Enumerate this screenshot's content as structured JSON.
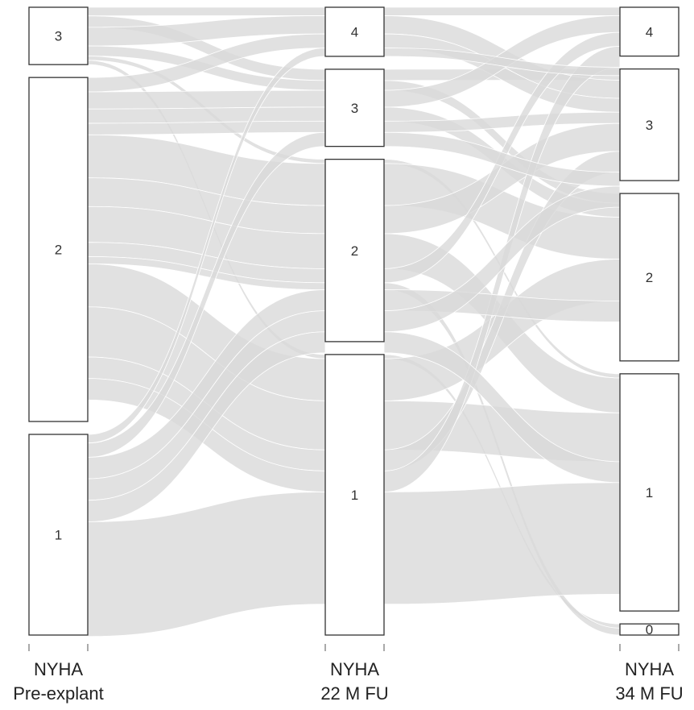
{
  "chart_data": {
    "type": "alluvial",
    "axes": [
      {
        "title_line1": "NYHA",
        "title_line2": "Pre-explant",
        "categories": [
          "3",
          "2",
          "1"
        ],
        "sizes": [
          4,
          24,
          14
        ]
      },
      {
        "title_line1": "NYHA",
        "title_line2": "22 M FU",
        "categories": [
          "4",
          "3",
          "2",
          "1"
        ],
        "sizes": [
          3.5,
          5.5,
          13,
          20
        ]
      },
      {
        "title_line1": "NYHA",
        "title_line2": "34 M FU",
        "categories": [
          "4",
          "3",
          "2",
          "1",
          "0"
        ],
        "sizes": [
          3.5,
          8,
          12,
          17,
          0.8
        ]
      }
    ],
    "flows": [
      {
        "path": [
          "3",
          "4",
          "4"
        ],
        "value": 0.6
      },
      {
        "path": [
          "3",
          "3",
          "3"
        ],
        "value": 0.8
      },
      {
        "path": [
          "3",
          "4",
          "3"
        ],
        "value": 1.3
      },
      {
        "path": [
          "3",
          "3",
          "2"
        ],
        "value": 0.7
      },
      {
        "path": [
          "3",
          "2",
          "1"
        ],
        "value": 0.3
      },
      {
        "path": [
          "3",
          "1",
          "0"
        ],
        "value": 0.3
      },
      {
        "path": [
          "2",
          "4",
          "3"
        ],
        "value": 1.0
      },
      {
        "path": [
          "2",
          "3",
          "4"
        ],
        "value": 1.2
      },
      {
        "path": [
          "2",
          "3",
          "2"
        ],
        "value": 1.0
      },
      {
        "path": [
          "2",
          "3",
          "3"
        ],
        "value": 0.8
      },
      {
        "path": [
          "2",
          "2",
          "2"
        ],
        "value": 3.0
      },
      {
        "path": [
          "2",
          "2",
          "3"
        ],
        "value": 2.0
      },
      {
        "path": [
          "2",
          "2",
          "1"
        ],
        "value": 2.5
      },
      {
        "path": [
          "2",
          "2",
          "4"
        ],
        "value": 1.0
      },
      {
        "path": [
          "2",
          "2",
          "0"
        ],
        "value": 0.5
      },
      {
        "path": [
          "2",
          "1",
          "2"
        ],
        "value": 3.0
      },
      {
        "path": [
          "2",
          "1",
          "1"
        ],
        "value": 3.5
      },
      {
        "path": [
          "2",
          "1",
          "3"
        ],
        "value": 1.5
      },
      {
        "path": [
          "2",
          "1",
          "4"
        ],
        "value": 1.5
      },
      {
        "path": [
          "1",
          "4",
          "4"
        ],
        "value": 0.6
      },
      {
        "path": [
          "1",
          "3",
          "3"
        ],
        "value": 1.0
      },
      {
        "path": [
          "1",
          "2",
          "2"
        ],
        "value": 1.5
      },
      {
        "path": [
          "1",
          "2",
          "3"
        ],
        "value": 1.5
      },
      {
        "path": [
          "1",
          "2",
          "1"
        ],
        "value": 1.5
      },
      {
        "path": [
          "1",
          "1",
          "1"
        ],
        "value": 8.0
      }
    ]
  }
}
